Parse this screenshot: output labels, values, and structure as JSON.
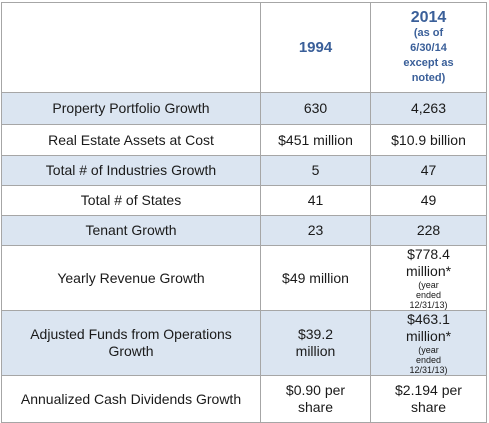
{
  "header": {
    "col1": "1994",
    "col2": "2014",
    "col2_note": "(as of 6/30/14 except as noted)"
  },
  "rows": [
    {
      "label": "Property Portfolio Growth",
      "v1994": "630",
      "v2014": "4,263"
    },
    {
      "label": "Real Estate Assets at Cost",
      "v1994": "$451 million",
      "v2014": "$10.9 billion"
    },
    {
      "label": "Total # of Industries Growth",
      "v1994": "5",
      "v2014": "47"
    },
    {
      "label": "Total # of States",
      "v1994": "41",
      "v2014": "49"
    },
    {
      "label": "Tenant Growth",
      "v1994": "23",
      "v2014": "228"
    },
    {
      "label": "Yearly Revenue Growth",
      "v1994": "$49 million",
      "v2014": "$778.4 million*",
      "note": "(year ended 12/31/13)"
    },
    {
      "label": "Adjusted Funds from Operations Growth",
      "v1994": "$39.2 million",
      "v2014": "$463.1 million*",
      "note": "(year ended 12/31/13)"
    },
    {
      "label": "Annualized Cash Dividends Growth",
      "v1994": "$0.90 per share",
      "v2014": "$2.194 per share"
    }
  ]
}
